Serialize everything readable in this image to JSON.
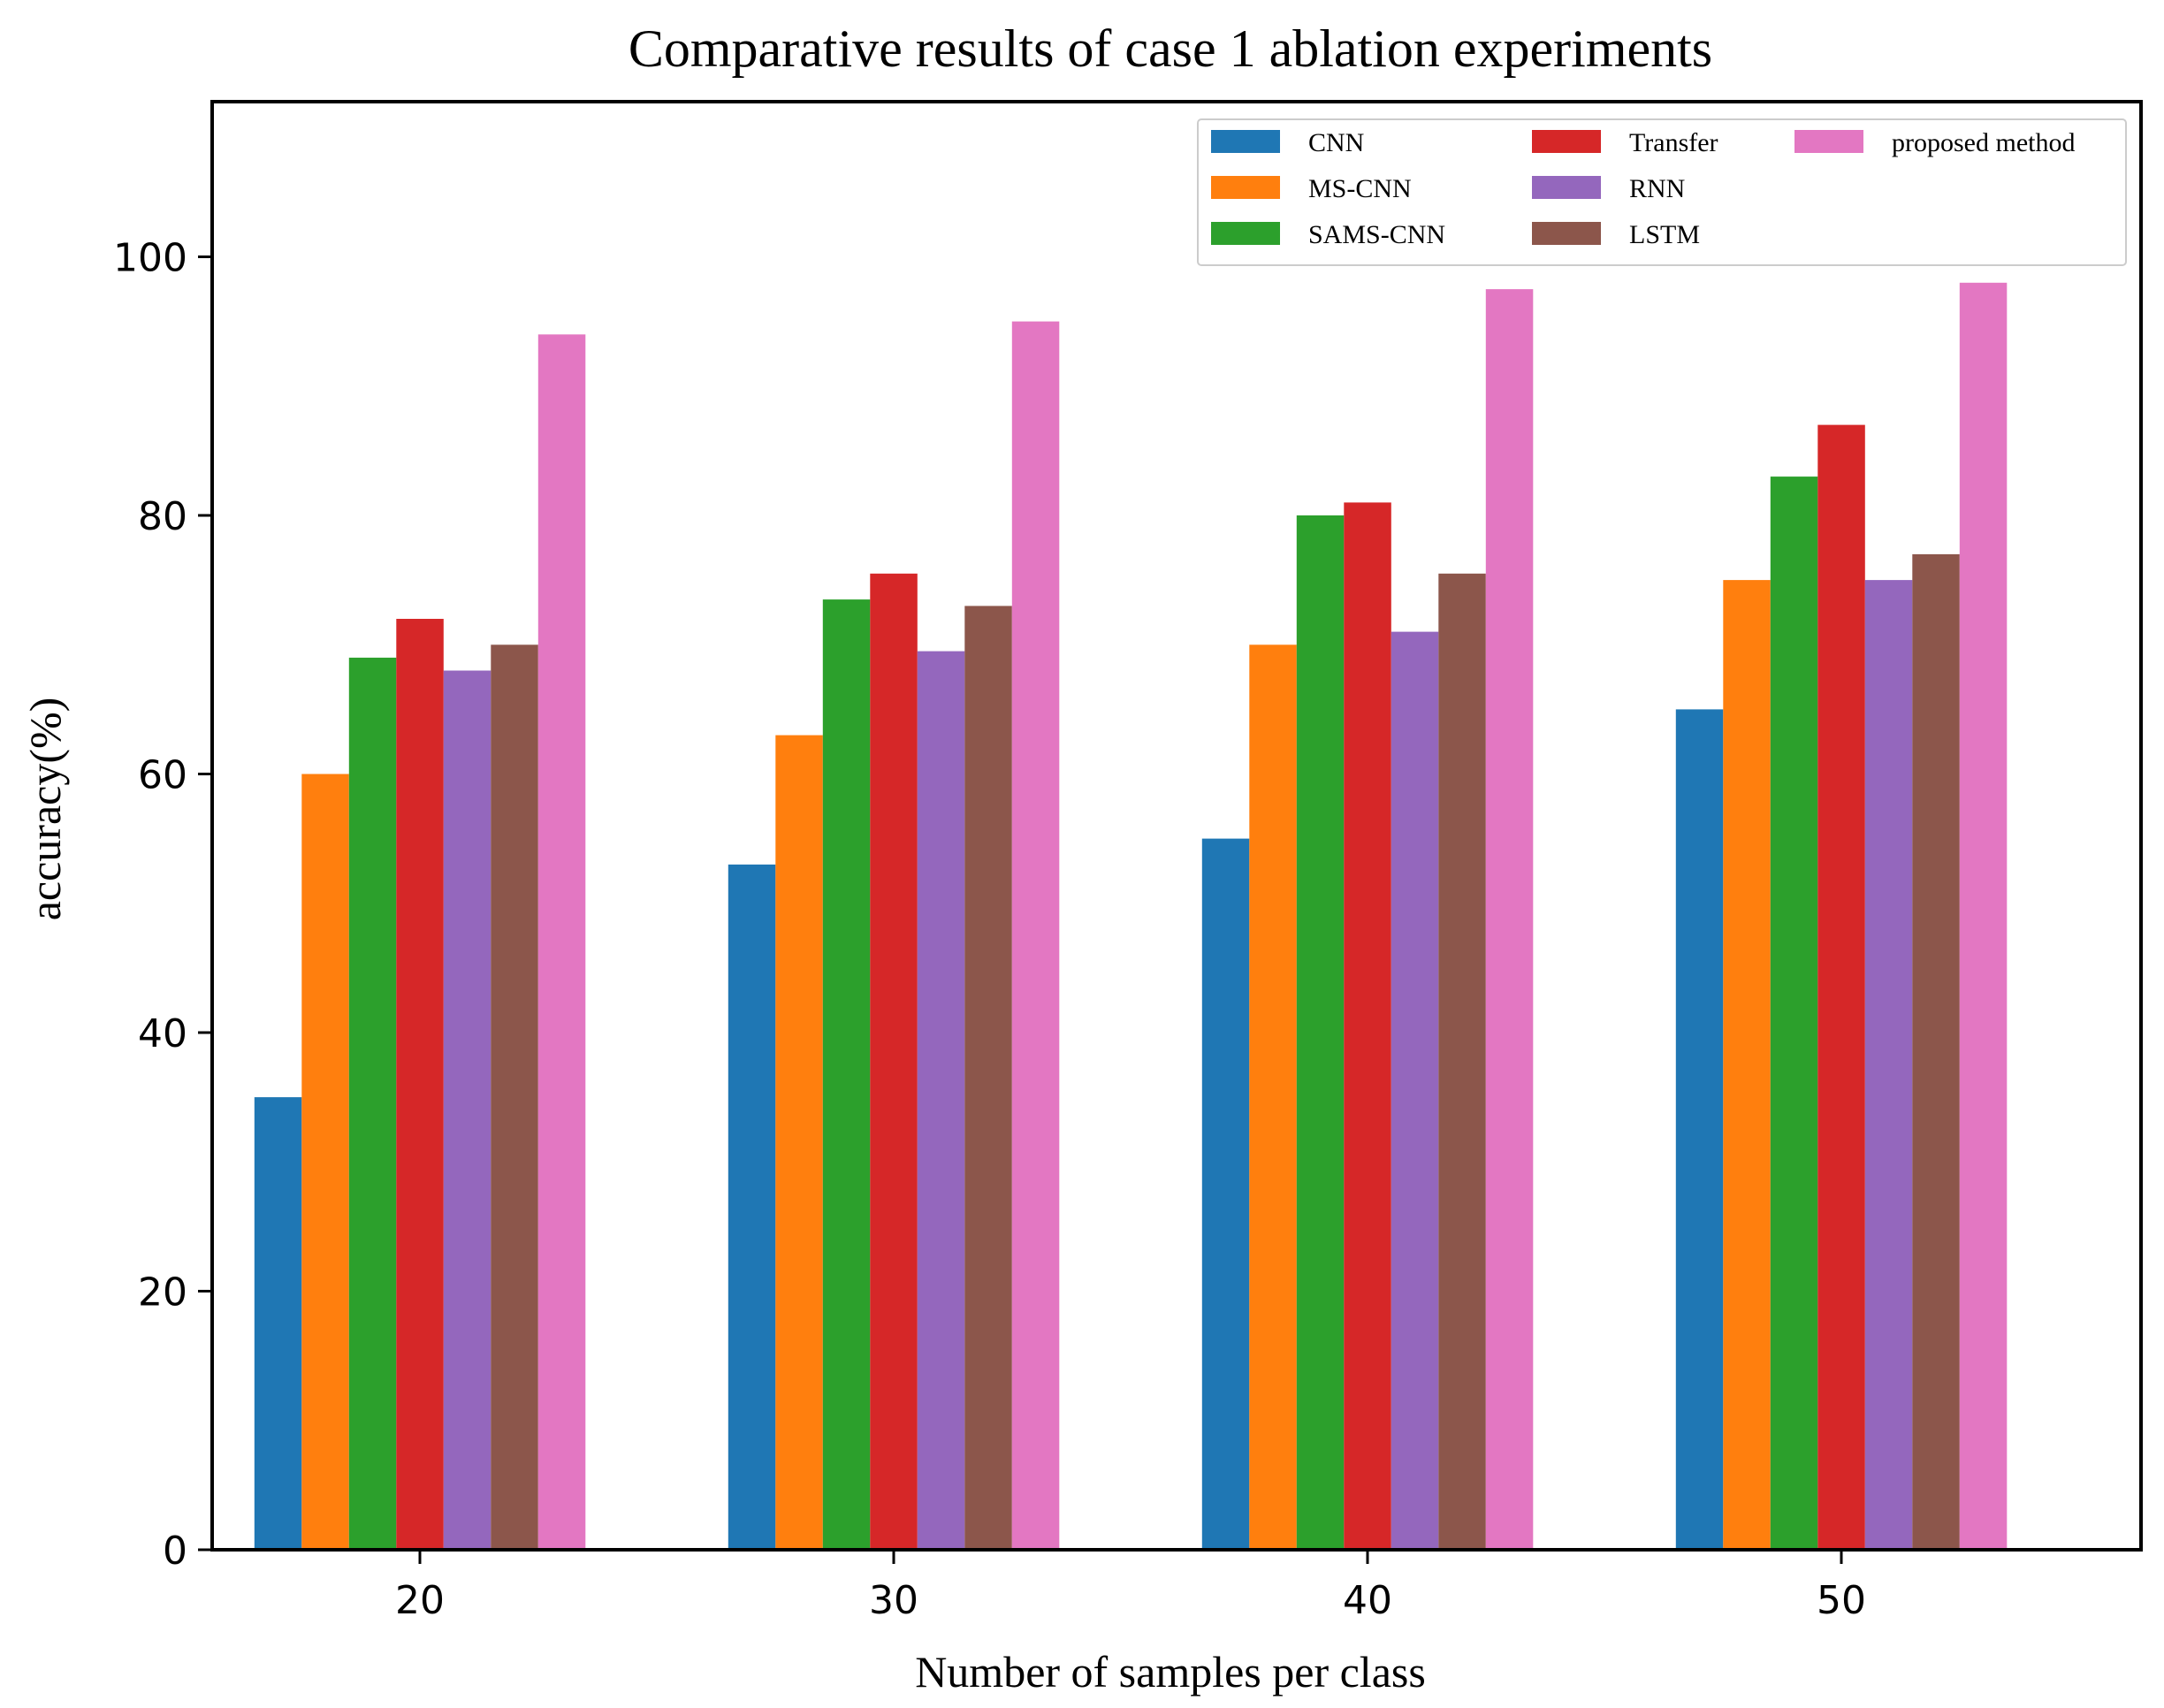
{
  "chart_data": {
    "type": "bar",
    "title": "Comparative results of case 1 ablation experiments",
    "xlabel": "Number of samples per class",
    "ylabel": "accuracy(%)",
    "categories": [
      "20",
      "30",
      "40",
      "50"
    ],
    "ylim": [
      0,
      112
    ],
    "yticks": [
      0,
      20,
      40,
      60,
      80,
      100
    ],
    "grid": false,
    "legend_position": "top-right",
    "series": [
      {
        "name": "CNN",
        "color": "#1f77b4",
        "values": [
          35,
          53,
          55,
          65
        ]
      },
      {
        "name": "MS-CNN",
        "color": "#ff7f0e",
        "values": [
          60,
          63,
          70,
          75
        ]
      },
      {
        "name": "SAMS-CNN",
        "color": "#2ca02c",
        "values": [
          69,
          73.5,
          80,
          83
        ]
      },
      {
        "name": "Transfer",
        "color": "#d62728",
        "values": [
          72,
          75.5,
          81,
          87
        ]
      },
      {
        "name": "RNN",
        "color": "#9467bd",
        "values": [
          68,
          69.5,
          71,
          75
        ]
      },
      {
        "name": "LSTM",
        "color": "#8c564b",
        "values": [
          70,
          73,
          75.5,
          77
        ]
      },
      {
        "name": "proposed method",
        "color": "#e377c2",
        "values": [
          94,
          95,
          97.5,
          98
        ]
      }
    ]
  }
}
